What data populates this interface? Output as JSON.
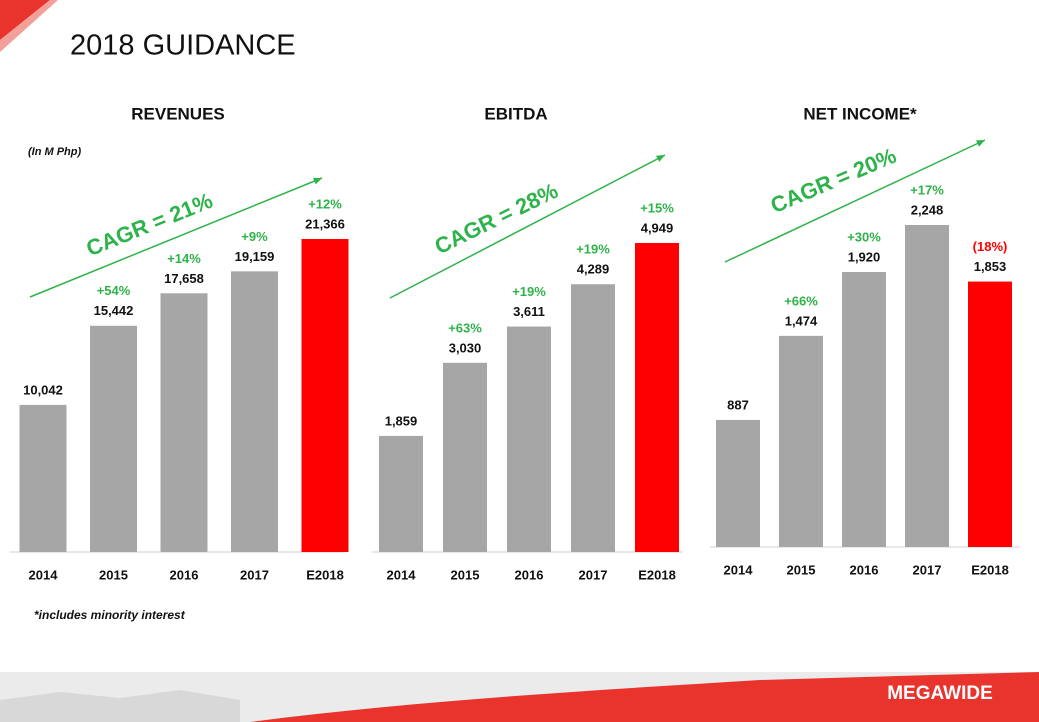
{
  "page": {
    "title": "2018 GUIDANCE",
    "unit_note": "(In M Php)",
    "footnote": "*includes minority interest",
    "logo": "MEGAWIDE"
  },
  "chart_data": [
    {
      "type": "bar",
      "title": "REVENUES",
      "categories": [
        "2014",
        "2015",
        "2016",
        "2017",
        "E2018"
      ],
      "values": [
        10042,
        15442,
        17658,
        19159,
        21366
      ],
      "value_labels": [
        "10,042",
        "15,442",
        "17,658",
        "19,159",
        "21,366"
      ],
      "colors": [
        "#a6a6a6",
        "#a6a6a6",
        "#a6a6a6",
        "#a6a6a6",
        "#ff0000"
      ],
      "annotations": {
        "growth": [
          null,
          "+54%",
          "+14%",
          "+9%",
          "+12%"
        ],
        "growth_colors": [
          null,
          "#2eb34a",
          "#2eb34a",
          "#2eb34a",
          "#2eb34a"
        ],
        "cagr": "CAGR = 21%",
        "cagr_color": "#2eb34a"
      }
    },
    {
      "type": "bar",
      "title": "EBITDA",
      "categories": [
        "2014",
        "2015",
        "2016",
        "2017",
        "E2018"
      ],
      "values": [
        1859,
        3030,
        3611,
        4289,
        4949
      ],
      "value_labels": [
        "1,859",
        "3,030",
        "3,611",
        "4,289",
        "4,949"
      ],
      "colors": [
        "#a6a6a6",
        "#a6a6a6",
        "#a6a6a6",
        "#a6a6a6",
        "#ff0000"
      ],
      "annotations": {
        "growth": [
          null,
          "+63%",
          "+19%",
          "+19%",
          "+15%"
        ],
        "growth_colors": [
          null,
          "#2eb34a",
          "#2eb34a",
          "#2eb34a",
          "#2eb34a"
        ],
        "cagr": "CAGR = 28%",
        "cagr_color": "#2eb34a"
      }
    },
    {
      "type": "bar",
      "title": "NET INCOME*",
      "categories": [
        "2014",
        "2015",
        "2016",
        "2017",
        "E2018"
      ],
      "values": [
        887,
        1474,
        1920,
        2248,
        1853
      ],
      "value_labels": [
        "887",
        "1,474",
        "1,920",
        "2,248",
        "1,853"
      ],
      "colors": [
        "#a6a6a6",
        "#a6a6a6",
        "#a6a6a6",
        "#a6a6a6",
        "#ff0000"
      ],
      "annotations": {
        "growth": [
          null,
          "+66%",
          "+30%",
          "+17%",
          "(18%)"
        ],
        "growth_colors": [
          null,
          "#2eb34a",
          "#2eb34a",
          "#2eb34a",
          "#ff0000"
        ],
        "cagr": "CAGR = 20%",
        "cagr_color": "#2eb34a"
      }
    }
  ]
}
